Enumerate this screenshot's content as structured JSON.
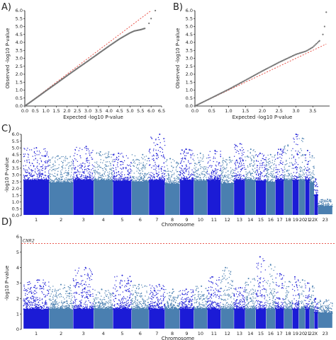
{
  "panels": {
    "a": {
      "label": "A)"
    },
    "b": {
      "label": "B)"
    },
    "c": {
      "label": "C)"
    },
    "d": {
      "label": "D)"
    }
  },
  "chart_data": [
    {
      "id": "a",
      "type": "scatter",
      "title": "",
      "xlabel": "Expected -log10 P-value",
      "ylabel": "Observed -log10 P-value",
      "xlim": [
        0,
        6.5
      ],
      "ylim": [
        0,
        6.0
      ],
      "xticks": [
        "0.0",
        "0.5",
        "1.0",
        "1.5",
        "2.0",
        "2.5",
        "3.0",
        "3.5",
        "4.0",
        "4.5",
        "5.0",
        "5.5",
        "6.0",
        "6.5"
      ],
      "yticks": [
        "0.0",
        "0.5",
        "1.0",
        "1.5",
        "2.0",
        "2.5",
        "3.0",
        "3.5",
        "4.0",
        "4.5",
        "5.0",
        "5.5",
        "6.0"
      ],
      "reference_line": {
        "x": [
          0,
          6.0
        ],
        "y": [
          0,
          6.0
        ],
        "color": "#e8443a",
        "style": "dashed"
      },
      "series": [
        {
          "x": [
            0,
            0.5,
            1.0,
            1.5,
            2.0,
            2.5,
            3.0,
            3.5,
            4.0,
            4.5,
            4.8,
            5.0,
            5.2,
            5.5,
            5.7,
            5.9,
            6.0,
            6.2
          ],
          "values": [
            0,
            0.47,
            0.95,
            1.42,
            1.9,
            2.37,
            2.83,
            3.3,
            3.77,
            4.22,
            4.45,
            4.6,
            4.72,
            4.8,
            4.88,
            5.2,
            5.5,
            6.0
          ]
        }
      ],
      "point_color": "#777777"
    },
    {
      "id": "b",
      "type": "scatter",
      "title": "",
      "xlabel": "Expected -log10 P-value",
      "ylabel": "Observed -log10 P-value",
      "xlim": [
        0,
        4.0
      ],
      "ylim": [
        0,
        6.0
      ],
      "xticks": [
        "0.0",
        "0.5",
        "1.0",
        "1.5",
        "2.0",
        "2.5",
        "3.0",
        "3.5"
      ],
      "yticks": [
        "0.0",
        "0.5",
        "1.0",
        "1.5",
        "2.0",
        "2.5",
        "3.0",
        "3.5",
        "4.0",
        "4.5",
        "5.0",
        "5.5",
        "6.0"
      ],
      "reference_line": {
        "x": [
          0,
          3.9
        ],
        "y": [
          0,
          3.9
        ],
        "color": "#e8443a",
        "style": "dashed"
      },
      "series": [
        {
          "x": [
            0,
            0.5,
            1.0,
            1.5,
            2.0,
            2.5,
            3.0,
            3.3,
            3.5,
            3.6,
            3.7,
            3.8,
            3.85,
            3.9
          ],
          "values": [
            0,
            0.52,
            1.05,
            1.62,
            2.2,
            2.75,
            3.25,
            3.45,
            3.7,
            3.9,
            4.1,
            4.5,
            5.0,
            5.9
          ]
        }
      ],
      "point_color": "#777777"
    },
    {
      "id": "c",
      "type": "scatter",
      "title": "",
      "xlabel": "Chromosome",
      "ylabel": "-log10 P-value",
      "ylim": [
        0,
        6.0
      ],
      "yticks": [
        "0.0",
        "0.5",
        "1.0",
        "1.5",
        "2.0",
        "2.5",
        "3.0",
        "3.5",
        "4.0",
        "4.5",
        "5.0",
        "5.5",
        "6.0"
      ],
      "categories": [
        "1",
        "2",
        "3",
        "4",
        "5",
        "6",
        "7",
        "8",
        "9",
        "10",
        "11",
        "12",
        "13",
        "14",
        "15",
        "16",
        "17",
        "18",
        "19",
        "20",
        "21",
        "22",
        "X",
        "23"
      ],
      "chromosome_widths": [
        8,
        7.5,
        6.4,
        6.0,
        5.8,
        5.4,
        5.0,
        4.6,
        4.4,
        4.2,
        4.2,
        4.1,
        3.5,
        3.3,
        3.2,
        2.9,
        2.7,
        2.6,
        2.0,
        2.0,
        1.4,
        1.4,
        1.2,
        4.5
      ],
      "peak_values": [
        5.0,
        4.4,
        5.1,
        4.7,
        4.6,
        4.5,
        6.0,
        4.2,
        4.9,
        4.6,
        4.8,
        4.3,
        5.3,
        4.9,
        4.6,
        4.5,
        4.9,
        5.2,
        6.0,
        5.7,
        4.8,
        4.4,
        2.7,
        1.2
      ],
      "colors": [
        "#1b1bd6",
        "#4a7fb0"
      ]
    },
    {
      "id": "d",
      "type": "scatter",
      "title": "",
      "xlabel": "Chromosome",
      "ylabel": "-log10 P-value",
      "ylim": [
        0,
        6.0
      ],
      "yticks": [
        "0",
        "1",
        "2",
        "3",
        "4",
        "5",
        "6"
      ],
      "categories": [
        "1",
        "2",
        "3",
        "4",
        "5",
        "6",
        "7",
        "8",
        "9",
        "10",
        "11",
        "12",
        "13",
        "14",
        "15",
        "16",
        "17",
        "18",
        "19",
        "20",
        "21",
        "22",
        "X",
        "23"
      ],
      "chromosome_widths": [
        8,
        7.5,
        6.4,
        6.0,
        5.8,
        5.4,
        5.0,
        4.6,
        4.4,
        4.2,
        4.2,
        4.1,
        3.5,
        3.3,
        3.2,
        2.9,
        2.7,
        2.6,
        2.0,
        2.0,
        1.4,
        1.4,
        1.2,
        4.5
      ],
      "peak_values": [
        3.2,
        2.9,
        4.0,
        2.6,
        3.5,
        2.9,
        2.9,
        2.6,
        2.6,
        2.8,
        3.4,
        4.0,
        2.7,
        3.3,
        4.7,
        4.2,
        3.6,
        3.1,
        3.4,
        3.2,
        3.0,
        2.8,
        2.0,
        1.9
      ],
      "threshold": {
        "value": 5.56,
        "color": "#e8443a",
        "style": "dashed",
        "label": "CNR2"
      },
      "colors": [
        "#1b1bd6",
        "#4a7fb0"
      ]
    }
  ]
}
